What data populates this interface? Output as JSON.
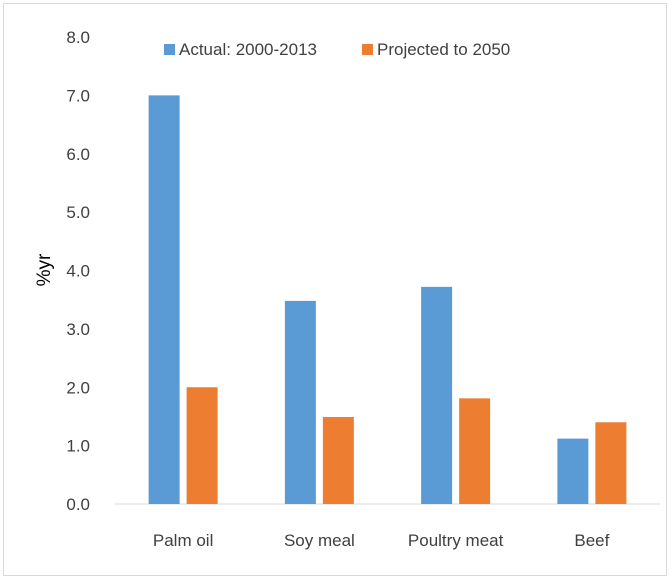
{
  "chart_data": {
    "type": "bar",
    "title": "",
    "xlabel": "",
    "ylabel": "%yr",
    "ylim": [
      0,
      8
    ],
    "yticks": [
      "0.0",
      "1.0",
      "2.0",
      "3.0",
      "4.0",
      "5.0",
      "6.0",
      "7.0",
      "8.0"
    ],
    "grid": false,
    "legend_position": "top",
    "categories": [
      "Palm oil",
      "Soy meal",
      "Poultry meat",
      "Beef"
    ],
    "series": [
      {
        "name": "Actual: 2000-2013",
        "color": "#5b9bd5",
        "values": [
          7.0,
          3.48,
          3.72,
          1.12
        ]
      },
      {
        "name": "Projected to 2050",
        "color": "#ed7d31",
        "values": [
          2.0,
          1.49,
          1.81,
          1.4
        ]
      }
    ]
  }
}
